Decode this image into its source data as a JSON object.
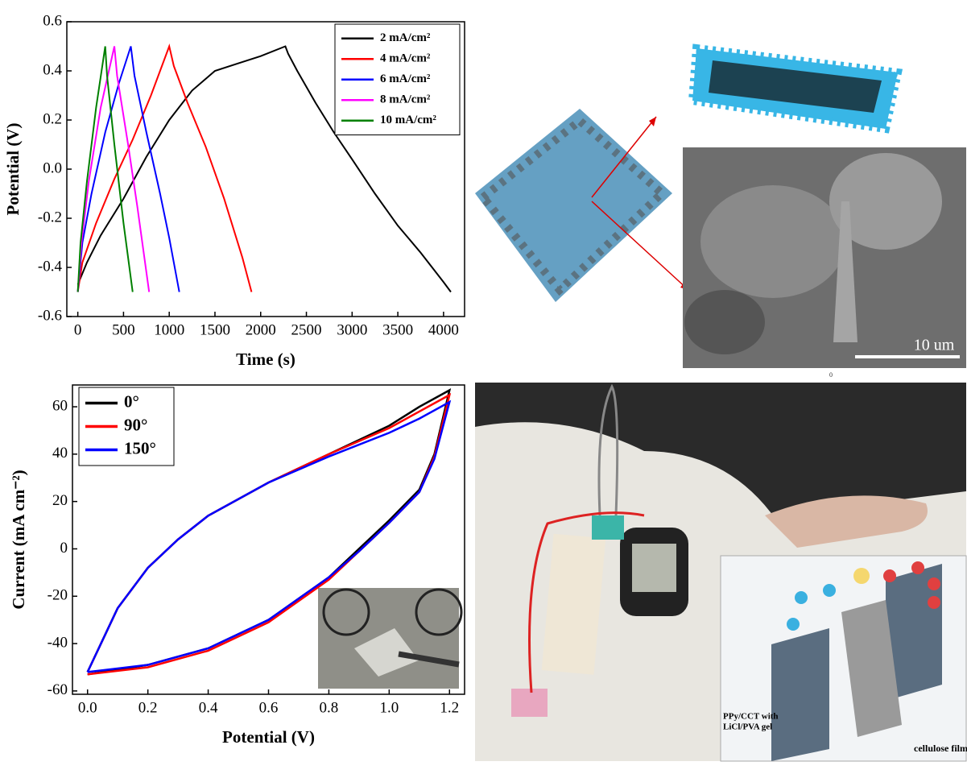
{
  "chart_data": [
    {
      "type": "line",
      "xlabel": "Time (s)",
      "ylabel": "Potential (V)",
      "xlim": [
        -120,
        4230
      ],
      "ylim": [
        -0.6,
        0.6
      ],
      "xticks": [
        0,
        500,
        1000,
        1500,
        2000,
        2500,
        3000,
        3500,
        4000
      ],
      "yticks": [
        -0.6,
        -0.4,
        -0.2,
        {
          "value": 0,
          "label": "0.0"
        },
        0.2,
        0.4,
        0.6
      ],
      "legend": "upper right",
      "series": [
        {
          "name": "2 mA/cm²",
          "color": "#000000",
          "x": [
            0,
            100,
            250,
            500,
            750,
            1000,
            1250,
            1500,
            1750,
            2000,
            2270,
            2300,
            2400,
            2600,
            2800,
            3000,
            3250,
            3500,
            3750,
            4000,
            4080
          ],
          "values": [
            -0.47,
            -0.38,
            -0.27,
            -0.12,
            0.05,
            0.2,
            0.32,
            0.4,
            0.43,
            0.46,
            0.5,
            0.47,
            0.4,
            0.27,
            0.15,
            0.04,
            -0.1,
            -0.23,
            -0.34,
            -0.46,
            -0.5
          ]
        },
        {
          "name": "4 mA/cm²",
          "color": "#ff0000",
          "x": [
            0,
            50,
            200,
            400,
            600,
            800,
            1000,
            1050,
            1200,
            1400,
            1600,
            1800,
            1900
          ],
          "values": [
            -0.5,
            -0.38,
            -0.22,
            -0.04,
            0.12,
            0.3,
            0.5,
            0.42,
            0.27,
            0.09,
            -0.12,
            -0.36,
            -0.5
          ]
        },
        {
          "name": "6 mA/cm²",
          "color": "#0000ff",
          "x": [
            0,
            50,
            150,
            300,
            450,
            580,
            620,
            750,
            900,
            1000,
            1110
          ],
          "values": [
            -0.5,
            -0.3,
            -0.1,
            0.15,
            0.35,
            0.5,
            0.38,
            0.15,
            -0.1,
            -0.28,
            -0.5
          ]
        },
        {
          "name": "8 mA/cm²",
          "color": "#ff00ff",
          "x": [
            0,
            40,
            120,
            250,
            400,
            430,
            550,
            650,
            780
          ],
          "values": [
            -0.5,
            -0.3,
            -0.05,
            0.25,
            0.5,
            0.38,
            0.1,
            -0.15,
            -0.5
          ]
        },
        {
          "name": "10 mA/cm²",
          "color": "#008000",
          "x": [
            0,
            30,
            100,
            200,
            300,
            320,
            400,
            500,
            600
          ],
          "values": [
            -0.5,
            -0.3,
            -0.05,
            0.25,
            0.5,
            0.38,
            0.1,
            -0.22,
            -0.5
          ]
        }
      ]
    },
    {
      "type": "line",
      "xlabel": "Potential (V)",
      "ylabel": "Current (mA cm⁻²)",
      "xlim": [
        -0.05,
        1.25
      ],
      "ylim": [
        -61.4,
        69.2
      ],
      "xticks": [
        {
          "value": 0,
          "label": "0.0"
        },
        0.2,
        0.4,
        0.6,
        0.8,
        {
          "value": 1,
          "label": "1.0"
        },
        1.2
      ],
      "yticks": [
        -60,
        -40,
        -20,
        0,
        20,
        40,
        60
      ],
      "legend": "upper left",
      "series": [
        {
          "name": "0°",
          "color": "#000000",
          "x": [
            0,
            0.1,
            0.2,
            0.3,
            0.4,
            0.6,
            0.8,
            1.0,
            1.1,
            1.2,
            1.15,
            1.1,
            1.0,
            0.9,
            0.8,
            0.6,
            0.4,
            0.2,
            0.0
          ],
          "values": [
            -52,
            -25,
            -8,
            4,
            14,
            28,
            40,
            52,
            60,
            67,
            40,
            25,
            12,
            0,
            -12,
            -30,
            -42,
            -49,
            -53
          ]
        },
        {
          "name": "90°",
          "color": "#ff0000",
          "x": [
            0,
            0.1,
            0.2,
            0.3,
            0.4,
            0.6,
            0.8,
            1.0,
            1.1,
            1.2,
            1.15,
            1.1,
            1.0,
            0.9,
            0.8,
            0.6,
            0.4,
            0.2,
            0.0
          ],
          "values": [
            -52,
            -25,
            -8,
            4,
            14,
            28,
            40,
            51,
            58,
            65,
            39,
            24,
            11,
            -1,
            -13,
            -31,
            -43,
            -50,
            -53
          ]
        },
        {
          "name": "150°",
          "color": "#0000ff",
          "x": [
            0,
            0.1,
            0.2,
            0.3,
            0.4,
            0.6,
            0.8,
            1.0,
            1.1,
            1.2,
            1.15,
            1.1,
            1.0,
            0.9,
            0.8,
            0.6,
            0.4,
            0.2,
            0.0
          ],
          "values": [
            -52,
            -25,
            -8,
            4,
            14,
            28,
            39,
            49,
            55,
            62,
            38,
            24,
            11,
            -1,
            -12,
            -30,
            -42,
            -49,
            -52
          ]
        }
      ]
    }
  ],
  "images": {
    "scale_bar": "10 um",
    "mark": "0",
    "electrode_label": [
      "PPy/CCT with",
      "LiCl/PVA gel"
    ],
    "separator_label": "cellulose film"
  }
}
